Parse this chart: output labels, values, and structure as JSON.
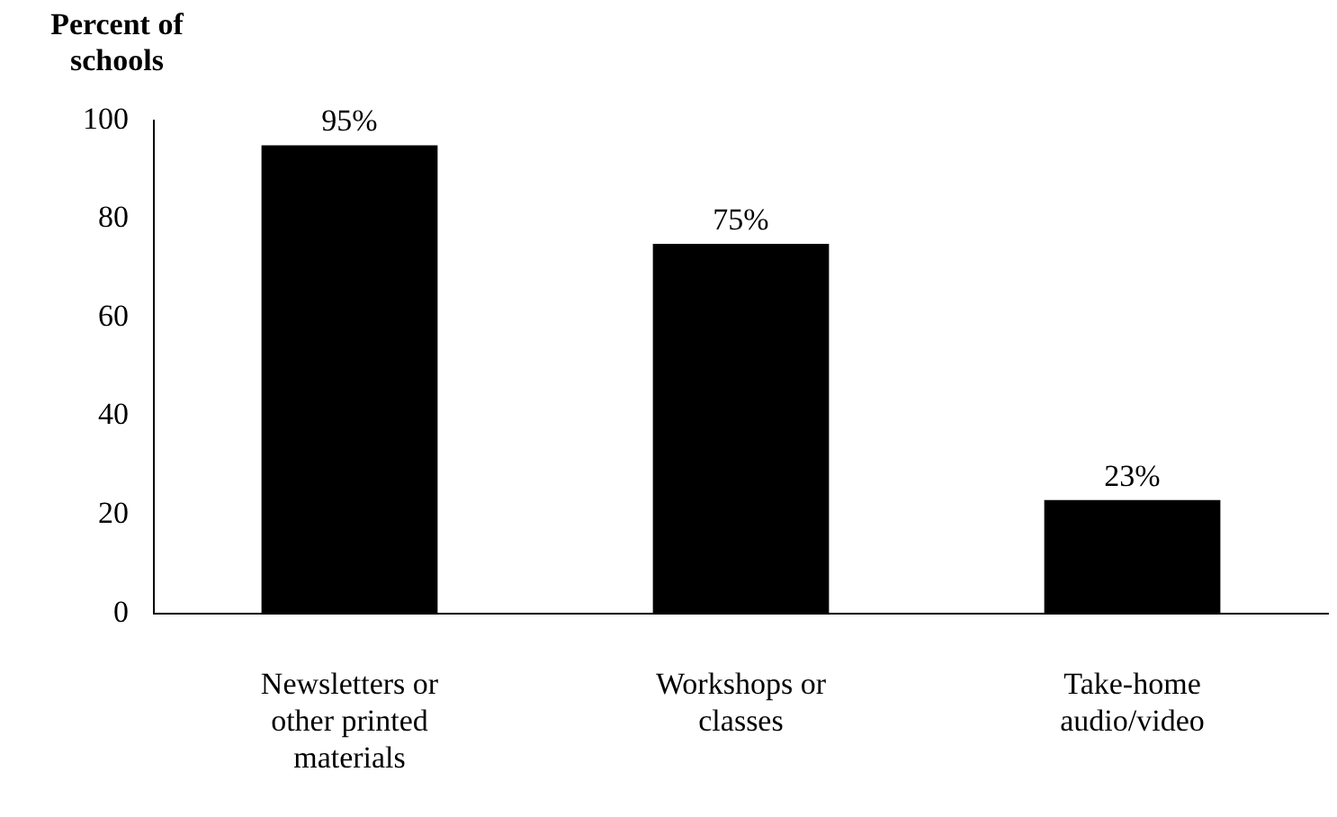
{
  "chart_data": {
    "type": "bar",
    "ylabel": "Percent of schools",
    "categories": [
      "Newsletters or other printed materials",
      "Workshops or classes",
      "Take-home audio/video"
    ],
    "values": [
      95,
      75,
      23
    ],
    "color": "#000000",
    "value_labels": [
      "95%",
      "75%",
      "23%"
    ],
    "ylim": [
      0,
      100
    ],
    "yticks": [
      0,
      20,
      40,
      60,
      80,
      100
    ],
    "grid": false,
    "legend": false
  }
}
